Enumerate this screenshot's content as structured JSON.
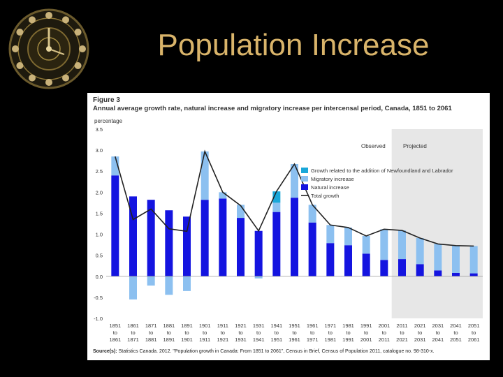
{
  "slide": {
    "title": "Population Increase"
  },
  "figure": {
    "label": "Figure 3",
    "source_prefix": "Source(s):",
    "source_text": "Statistics Canada. 2012. \"Population growth in Canada: From 1851 to 2061\", Census in Brief, Census of Population 2011, catalogue no. 98-310-x."
  },
  "colors": {
    "natural": "#1414e0",
    "migratory": "#8cc0f0",
    "newfoundland": "#19a7d9",
    "total": "#222222",
    "projected_bg": "#e7e7e7",
    "title": "#d9b46a"
  },
  "chart_data": {
    "type": "bar",
    "title": "Annual average growth rate, natural increase and migratory increase per intercensal period, Canada, 1851 to 2061",
    "ylabel": "percentage",
    "ylim": [
      -1.0,
      3.5
    ],
    "yticks": [
      "3.5",
      "3.0",
      "2.5",
      "2.0",
      "1.5",
      "1.0",
      "0.5",
      "0.0",
      "-0.5",
      "-1.0"
    ],
    "period_labels": [
      "Observed",
      "Projected"
    ],
    "categories": [
      [
        "1851",
        "to",
        "1861"
      ],
      [
        "1861",
        "to",
        "1871"
      ],
      [
        "1871",
        "to",
        "1881"
      ],
      [
        "1881",
        "to",
        "1891"
      ],
      [
        "1891",
        "to",
        "1901"
      ],
      [
        "1901",
        "to",
        "1911"
      ],
      [
        "1911",
        "to",
        "1921"
      ],
      [
        "1921",
        "to",
        "1931"
      ],
      [
        "1931",
        "to",
        "1941"
      ],
      [
        "1941",
        "to",
        "1951"
      ],
      [
        "1951",
        "to",
        "1961"
      ],
      [
        "1961",
        "to",
        "1971"
      ],
      [
        "1971",
        "to",
        "1981"
      ],
      [
        "1981",
        "to",
        "1991"
      ],
      [
        "1991",
        "to",
        "2001"
      ],
      [
        "2001",
        "to",
        "2011"
      ],
      [
        "2011",
        "to",
        "2021"
      ],
      [
        "2021",
        "to",
        "2031"
      ],
      [
        "2031",
        "to",
        "2041"
      ],
      [
        "2041",
        "to",
        "2051"
      ],
      [
        "2051",
        "to",
        "2061"
      ]
    ],
    "projected_start_index": 16,
    "series": [
      {
        "name": "Natural increase",
        "values": [
          2.4,
          1.9,
          1.82,
          1.57,
          1.42,
          1.82,
          1.85,
          1.39,
          1.08,
          1.53,
          1.87,
          1.28,
          0.79,
          0.74,
          0.54,
          0.39,
          0.41,
          0.29,
          0.14,
          0.08,
          0.07
        ]
      },
      {
        "name": "Migratory increase",
        "values": [
          0.45,
          -0.55,
          -0.22,
          -0.44,
          -0.35,
          1.15,
          0.15,
          0.31,
          -0.05,
          0.22,
          0.8,
          0.42,
          0.43,
          0.42,
          0.42,
          0.73,
          0.68,
          0.62,
          0.63,
          0.65,
          0.65
        ]
      },
      {
        "name": "Growth related to the addition of Newfoundland and Labrador",
        "values": [
          0,
          0,
          0,
          0,
          0,
          0,
          0,
          0,
          0,
          0.27,
          0,
          0,
          0,
          0,
          0,
          0,
          0,
          0,
          0,
          0,
          0
        ]
      },
      {
        "name": "Total growth",
        "values": [
          2.85,
          1.35,
          1.6,
          1.13,
          1.07,
          2.97,
          2.0,
          1.68,
          1.08,
          2.02,
          2.67,
          1.7,
          1.22,
          1.16,
          0.96,
          1.12,
          1.09,
          0.91,
          0.77,
          0.73,
          0.72
        ]
      }
    ],
    "legend_order": [
      2,
      1,
      0,
      3
    ]
  }
}
